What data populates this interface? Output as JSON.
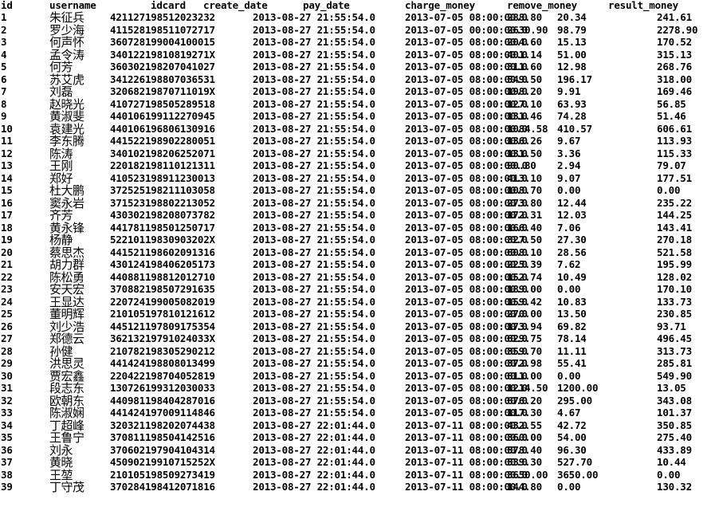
{
  "columns": [
    "id",
    "username",
    "idcard",
    "create_date",
    "pay_date",
    "charge_money",
    "remove_money",
    "result_money"
  ],
  "rows": [
    {
      "id": "1",
      "username": "朱征兵",
      "idcard": "42112719851202323​2",
      "create_date": "2013-08-27 21:55:54.0",
      "pay_date": "2013-07-05 08:00:00.0",
      "charge_money": "288.80",
      "remove_money": "20.34",
      "result_money": "241.61"
    },
    {
      "id": "2",
      "username": "罗少海",
      "idcard": "411528198511072717",
      "create_date": "2013-08-27 21:55:54.0",
      "pay_date": "2013-07-05 00:00:00.0",
      "charge_money": "2630.90",
      "remove_money": "98.79",
      "result_money": "2278.90"
    },
    {
      "id": "3",
      "username": "何声怀",
      "idcard": "360728199004100015",
      "create_date": "2013-08-27 21:55:54.0",
      "pay_date": "2013-07-05 08:00:00.0",
      "charge_money": "204.60",
      "remove_money": "15.13",
      "result_money": "170.52"
    },
    {
      "id": "4",
      "username": "孟令涛",
      "idcard": "34012219810819271X",
      "create_date": "2013-08-27 21:55:54.0",
      "pay_date": "2013-07-05 08:00:00.0",
      "charge_money": "401.14",
      "remove_money": "51.00",
      "result_money": "315.13"
    },
    {
      "id": "5",
      "username": "何芳",
      "idcard": "360302198207041027",
      "create_date": "2013-08-27 21:55:54.0",
      "pay_date": "2013-07-05 08:00:00.0",
      "charge_money": "311.60",
      "remove_money": "12.98",
      "result_money": "268.76"
    },
    {
      "id": "6",
      "username": "苏艾虎",
      "idcard": "341226198807036531",
      "create_date": "2013-08-27 21:55:54.0",
      "pay_date": "2013-07-05 08:00:00.0",
      "charge_money": "549.50",
      "remove_money": "196.17",
      "result_money": "318.00"
    },
    {
      "id": "7",
      "username": "刘磊",
      "idcard": "32068219870711019X",
      "create_date": "2013-08-27 21:55:54.0",
      "pay_date": "2013-07-05 08:00:00.0",
      "charge_money": "198.20",
      "remove_money": "9.91",
      "result_money": "169.46"
    },
    {
      "id": "8",
      "username": "赵晓光",
      "idcard": "410727198505289518",
      "create_date": "2013-08-27 21:55:54.0",
      "pay_date": "2013-07-05 08:00:00.0",
      "charge_money": "127.10",
      "remove_money": "63.93",
      "result_money": "56.85"
    },
    {
      "id": "9",
      "username": "黄淑斐",
      "idcard": "440106199112270945",
      "create_date": "2013-08-27 21:55:54.0",
      "pay_date": "2013-07-05 08:00:00.0",
      "charge_money": "131.46",
      "remove_money": "74.28",
      "result_money": "51.46"
    },
    {
      "id": "10",
      "username": "袁建光",
      "idcard": "440106196806130916",
      "create_date": "2013-08-27 21:55:54.0",
      "pay_date": "2013-07-05 08:00:00.0",
      "charge_money": "1084.58",
      "remove_money": "410.57",
      "result_money": "606.61"
    },
    {
      "id": "11",
      "username": "李东腾",
      "idcard": "441522198902280051",
      "create_date": "2013-08-27 21:55:54.0",
      "pay_date": "2013-07-05 08:00:00.0",
      "charge_money": "136.26",
      "remove_money": "9.67",
      "result_money": "113.93"
    },
    {
      "id": "12",
      "username": "陈涛",
      "idcard": "340102198206252071",
      "create_date": "2013-08-27 21:55:54.0",
      "pay_date": "2013-07-05 08:00:00.0",
      "charge_money": "131.50",
      "remove_money": "3.36",
      "result_money": "115.33"
    },
    {
      "id": "13",
      "username": "王刚",
      "idcard": "220182198110121311",
      "create_date": "2013-08-27 21:55:54.0",
      "pay_date": "2013-07-05 08:00:00.0",
      "charge_money": "90.80",
      "remove_money": "2.94",
      "result_money": "79.07"
    },
    {
      "id": "14",
      "username": "郑好",
      "idcard": "410523198911230013",
      "create_date": "2013-08-27 21:55:54.0",
      "pay_date": "2013-07-05 08:00:00.0",
      "charge_money": "413.10",
      "remove_money": "9.07",
      "result_money": "177.51"
    },
    {
      "id": "15",
      "username": "杜大鹏",
      "idcard": "372525198211103058",
      "create_date": "2013-08-27 21:55:54.0",
      "pay_date": "2013-07-05 08:00:00.0",
      "charge_money": "108.70",
      "remove_money": "0.00",
      "result_money": "0.00"
    },
    {
      "id": "16",
      "username": "窦永岩",
      "idcard": "371523198802213052",
      "create_date": "2013-08-27 21:55:54.0",
      "pay_date": "2013-07-05 08:00:00.0",
      "charge_money": "273.80",
      "remove_money": "12.44",
      "result_money": "235.22"
    },
    {
      "id": "17",
      "username": "齐芳",
      "idcard": "430302198208073782",
      "create_date": "2013-08-27 21:55:54.0",
      "pay_date": "2013-07-05 08:00:00.0",
      "charge_money": "172.31",
      "remove_money": "12.03",
      "result_money": "144.25"
    },
    {
      "id": "18",
      "username": "黄永锋",
      "idcard": "441781198501250717",
      "create_date": "2013-08-27 21:55:54.0",
      "pay_date": "2013-07-05 08:00:00.0",
      "charge_money": "166.40",
      "remove_money": "7.06",
      "result_money": "143.41"
    },
    {
      "id": "19",
      "username": "杨静",
      "idcard": "52210119830903202X",
      "create_date": "2013-08-27 21:55:54.0",
      "pay_date": "2013-07-05 08:00:00.0",
      "charge_money": "327.50",
      "remove_money": "27.30",
      "result_money": "270.18"
    },
    {
      "id": "20",
      "username": "蔡思杰",
      "idcard": "441521198602091316",
      "create_date": "2013-08-27 21:55:54.0",
      "pay_date": "2013-07-05 08:00:00.0",
      "charge_money": "608.10",
      "remove_money": "28.56",
      "result_money": "521.58"
    },
    {
      "id": "21",
      "username": "胡力群",
      "idcard": "430124198406205173",
      "create_date": "2013-08-27 21:55:54.0",
      "pay_date": "2013-07-05 08:00:00.0",
      "charge_money": "225.39",
      "remove_money": "7.62",
      "result_money": "195.99"
    },
    {
      "id": "22",
      "username": "陈松勇",
      "idcard": "440881198812012710",
      "create_date": "2013-08-27 21:55:54.0",
      "pay_date": "2013-07-05 08:00:00.0",
      "charge_money": "152.74",
      "remove_money": "10.49",
      "result_money": "128.02"
    },
    {
      "id": "23",
      "username": "安天宏",
      "idcard": "370882198507291635",
      "create_date": "2013-08-27 21:55:54.0",
      "pay_date": "2013-07-05 08:00:00.0",
      "charge_money": "189.00",
      "remove_money": "0.00",
      "result_money": "170.10"
    },
    {
      "id": "24",
      "username": "王显达",
      "idcard": "220724199005082019",
      "create_date": "2013-08-27 21:55:54.0",
      "pay_date": "2013-07-05 08:00:00.0",
      "charge_money": "159.42",
      "remove_money": "10.83",
      "result_money": "133.73"
    },
    {
      "id": "25",
      "username": "董明辉",
      "idcard": "210105197810121612",
      "create_date": "2013-08-27 21:55:54.0",
      "pay_date": "2013-07-05 08:00:00.0",
      "charge_money": "270.00",
      "remove_money": "13.50",
      "result_money": "230.85"
    },
    {
      "id": "26",
      "username": "刘少浩",
      "idcard": "445121197809175354",
      "create_date": "2013-08-27 21:55:54.0",
      "pay_date": "2013-07-05 08:00:00.0",
      "charge_money": "173.94",
      "remove_money": "69.82",
      "result_money": "93.71"
    },
    {
      "id": "27",
      "username": "郑德云",
      "idcard": "36213219791024033X",
      "create_date": "2013-08-27 21:55:54.0",
      "pay_date": "2013-07-05 08:00:00.0",
      "charge_money": "629.75",
      "remove_money": "78.14",
      "result_money": "496.45"
    },
    {
      "id": "28",
      "username": "孙健",
      "idcard": "210782198305290212",
      "create_date": "2013-08-27 21:55:54.0",
      "pay_date": "2013-07-05 08:00:00.0",
      "charge_money": "359.70",
      "remove_money": "11.11",
      "result_money": "313.73"
    },
    {
      "id": "29",
      "username": "洪思灵",
      "idcard": "441424198808013499",
      "create_date": "2013-08-27 21:55:54.0",
      "pay_date": "2013-07-05 08:00:00.0",
      "charge_money": "372.98",
      "remove_money": "55.41",
      "result_money": "285.81"
    },
    {
      "id": "30",
      "username": "贾宏鑫",
      "idcard": "220422198704052819",
      "create_date": "2013-08-27 21:55:54.0",
      "pay_date": "2013-07-05 08:00:00.0",
      "charge_money": "611.00",
      "remove_money": "0.00",
      "result_money": "549.90"
    },
    {
      "id": "31",
      "username": "段志东",
      "idcard": "130726199312030033",
      "create_date": "2013-08-27 21:55:54.0",
      "pay_date": "2013-07-05 08:00:00.0",
      "charge_money": "1214.50",
      "remove_money": "1200.00",
      "result_money": "13.05"
    },
    {
      "id": "32",
      "username": "欧朝东",
      "idcard": "440981198404287016",
      "create_date": "2013-08-27 21:55:54.0",
      "pay_date": "2013-07-05 08:00:00.0",
      "charge_money": "676.20",
      "remove_money": "295.00",
      "result_money": "343.08"
    },
    {
      "id": "33",
      "username": "陈淑娴",
      "idcard": "441424197009114846",
      "create_date": "2013-08-27 21:55:54.0",
      "pay_date": "2013-07-05 08:00:00.0",
      "charge_money": "117.30",
      "remove_money": "4.67",
      "result_money": "101.37"
    },
    {
      "id": "34",
      "username": "丁超峰",
      "idcard": "320321198202074438",
      "create_date": "2013-08-27 22:01:44.0",
      "pay_date": "2013-07-11 08:00:00.0",
      "charge_money": "432.55",
      "remove_money": "42.72",
      "result_money": "350.85"
    },
    {
      "id": "35",
      "username": "王鲁宁",
      "idcard": "370811198504142516",
      "create_date": "2013-08-27 22:01:44.0",
      "pay_date": "2013-07-11 08:00:00.0",
      "charge_money": "360.00",
      "remove_money": "54.00",
      "result_money": "275.40"
    },
    {
      "id": "36",
      "username": "刘永",
      "idcard": "370602197904104314",
      "create_date": "2013-08-27 22:01:44.0",
      "pay_date": "2013-07-11 08:00:00.0",
      "charge_money": "578.40",
      "remove_money": "96.30",
      "result_money": "433.89"
    },
    {
      "id": "37",
      "username": "黄晓",
      "idcard": "45090219910715252X",
      "create_date": "2013-08-27 22:01:44.0",
      "pay_date": "2013-07-11 08:00:00.0",
      "charge_money": "539.30",
      "remove_money": "527.70",
      "result_money": "10.44"
    },
    {
      "id": "38",
      "username": "王堃",
      "idcard": "210105198509273419",
      "create_date": "2013-08-27 22:01:44.0",
      "pay_date": "2013-07-11 08:00:00.0",
      "charge_money": "3650.00",
      "remove_money": "3650.00",
      "result_money": "0.00"
    },
    {
      "id": "39",
      "username": "丁守茂",
      "idcard": "370284198412071816",
      "create_date": "2013-08-27 22:01:44.0",
      "pay_date": "2013-07-11 08:00:00.0",
      "charge_money": "144.80",
      "remove_money": "0.00",
      "result_money": "130.32"
    }
  ]
}
